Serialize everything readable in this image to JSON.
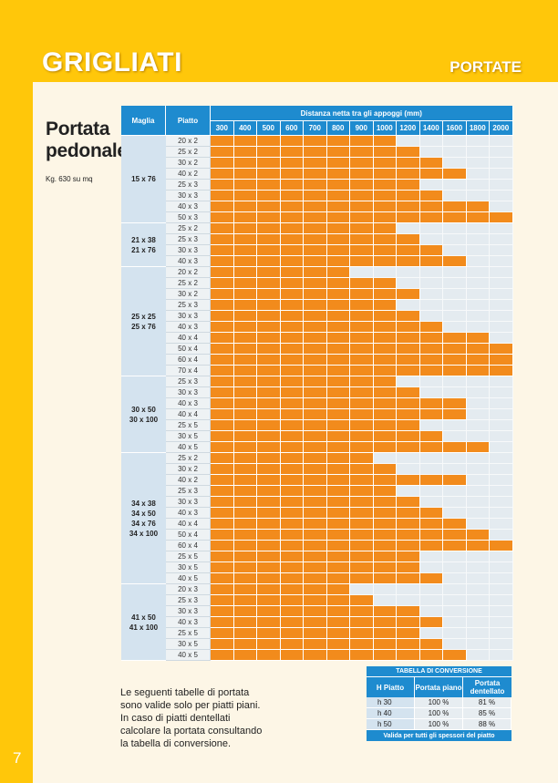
{
  "header": {
    "title": "GRIGLIATI",
    "section": "PORTATE"
  },
  "page_number": "7",
  "left_panel": {
    "title_line1": "Portata",
    "title_line2": "pedonale",
    "subtitle": "Kg. 630 su mq"
  },
  "colors": {
    "header_yellow": "#ffc70a",
    "table_blue": "#1e8bcf",
    "bar_orange": "#f28b1c",
    "empty_cell": "#e4ebf0"
  },
  "table": {
    "col_maglia": "Maglia",
    "col_piatto": "Piatto",
    "distance_header": "Distanza netta tra gli appoggi (mm)",
    "distances": [
      "300",
      "400",
      "500",
      "600",
      "700",
      "800",
      "900",
      "1000",
      "1200",
      "1400",
      "1600",
      "1800",
      "2000"
    ],
    "groups": [
      {
        "maglia": [
          "15 x 76"
        ],
        "rows": [
          {
            "piatto": "20 x 2",
            "max": 8
          },
          {
            "piatto": "25 x 2",
            "max": 9
          },
          {
            "piatto": "30 x 2",
            "max": 10
          },
          {
            "piatto": "40 x 2",
            "max": 11
          },
          {
            "piatto": "25 x 3",
            "max": 9
          },
          {
            "piatto": "30 x 3",
            "max": 10
          },
          {
            "piatto": "40 x 3",
            "max": 12
          },
          {
            "piatto": "50 x 3",
            "max": 13
          }
        ]
      },
      {
        "maglia": [
          "21 x 38",
          "21 x 76"
        ],
        "rows": [
          {
            "piatto": "25 x 2",
            "max": 8
          },
          {
            "piatto": "25 x 3",
            "max": 9
          },
          {
            "piatto": "30 x 3",
            "max": 10
          },
          {
            "piatto": "40 x 3",
            "max": 11
          }
        ]
      },
      {
        "maglia": [
          "25 x 25",
          "25 x 76"
        ],
        "rows": [
          {
            "piatto": "20 x 2",
            "max": 6
          },
          {
            "piatto": "25 x 2",
            "max": 8
          },
          {
            "piatto": "30 x 2",
            "max": 9
          },
          {
            "piatto": "25 x 3",
            "max": 8
          },
          {
            "piatto": "30 x 3",
            "max": 9
          },
          {
            "piatto": "40 x 3",
            "max": 10
          },
          {
            "piatto": "40 x 4",
            "max": 12
          },
          {
            "piatto": "50 x 4",
            "max": 13
          },
          {
            "piatto": "60 x 4",
            "max": 13
          },
          {
            "piatto": "70 x 4",
            "max": 13
          }
        ]
      },
      {
        "maglia": [
          "30 x 50",
          "30 x 100"
        ],
        "rows": [
          {
            "piatto": "25 x 3",
            "max": 8
          },
          {
            "piatto": "30 x 3",
            "max": 9
          },
          {
            "piatto": "40 x 3",
            "max": 11
          },
          {
            "piatto": "40 x 4",
            "max": 11
          },
          {
            "piatto": "25 x 5",
            "max": 9
          },
          {
            "piatto": "30 x 5",
            "max": 10
          },
          {
            "piatto": "40 x 5",
            "max": 12
          }
        ]
      },
      {
        "maglia": [
          "34 x 38",
          "34 x 50",
          "34 x 76",
          "34 x 100"
        ],
        "rows": [
          {
            "piatto": "25 x 2",
            "max": 7
          },
          {
            "piatto": "30 x 2",
            "max": 8
          },
          {
            "piatto": "40 x 2",
            "max": 11
          },
          {
            "piatto": "25 x 3",
            "max": 8
          },
          {
            "piatto": "30 x 3",
            "max": 9
          },
          {
            "piatto": "40 x 3",
            "max": 10
          },
          {
            "piatto": "40 x 4",
            "max": 11
          },
          {
            "piatto": "50 x 4",
            "max": 12
          },
          {
            "piatto": "60 x 4",
            "max": 13
          },
          {
            "piatto": "25 x 5",
            "max": 9
          },
          {
            "piatto": "30 x 5",
            "max": 9
          },
          {
            "piatto": "40 x 5",
            "max": 10
          }
        ]
      },
      {
        "maglia": [
          "41 x 50",
          "41 x 100"
        ],
        "rows": [
          {
            "piatto": "20 x 3",
            "max": 6
          },
          {
            "piatto": "25 x 3",
            "max": 7
          },
          {
            "piatto": "30 x 3",
            "max": 9
          },
          {
            "piatto": "40 x 3",
            "max": 10
          },
          {
            "piatto": "25 x 5",
            "max": 9
          },
          {
            "piatto": "30 x 5",
            "max": 10
          },
          {
            "piatto": "40 x 5",
            "max": 11
          }
        ]
      }
    ]
  },
  "note": {
    "line1": "Le seguenti tabelle di portata",
    "line2": "sono valide solo per piatti piani.",
    "line3": "In caso di piatti dentellati",
    "line4": "calcolare la portata consultando",
    "line5": "la tabella di conversione."
  },
  "conversion": {
    "title": "TABELLA DI CONVERSIONE",
    "col_h": "H Piatto",
    "col_piano": "Portata piano",
    "col_dentellato": "Portata dentellato",
    "rows": [
      {
        "h": "h 30",
        "piano": "100 %",
        "dentellato": "81 %"
      },
      {
        "h": "h 40",
        "piano": "100 %",
        "dentellato": "85 %"
      },
      {
        "h": "h 50",
        "piano": "100 %",
        "dentellato": "88 %"
      }
    ],
    "footer": "Valida per tutti gli spessori del piatto"
  }
}
